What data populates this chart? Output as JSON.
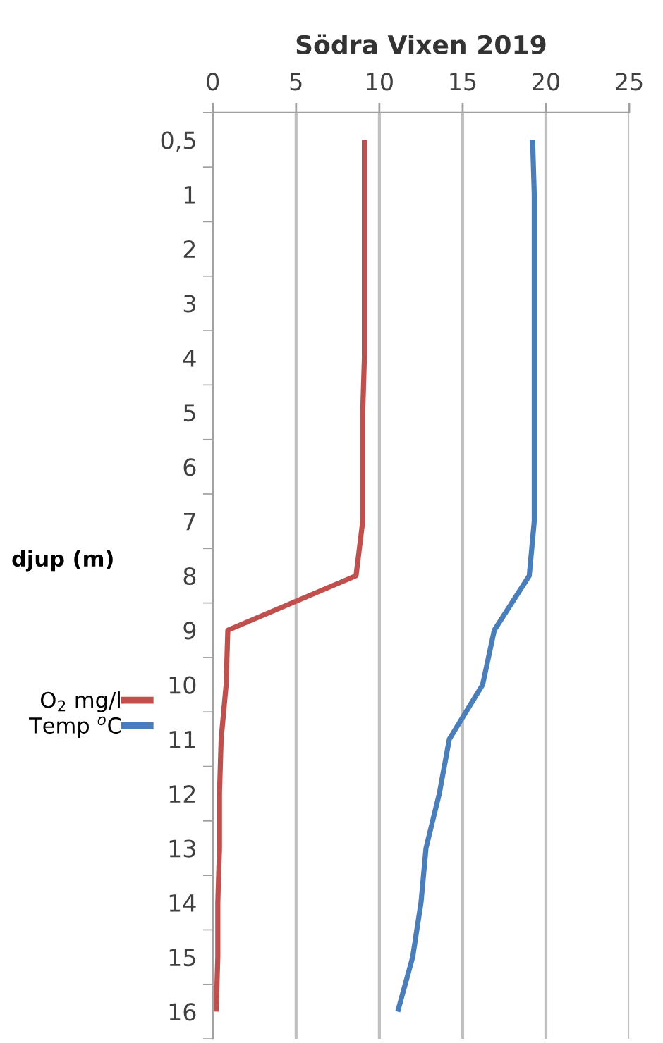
{
  "chart_data": {
    "type": "line",
    "title": "Södra Vixen 2019",
    "ylabel": "djup (m)",
    "categories": [
      "0,5",
      "1",
      "2",
      "3",
      "4",
      "5",
      "6",
      "7",
      "8",
      "9",
      "10",
      "11",
      "12",
      "13",
      "14",
      "15",
      "16"
    ],
    "series": [
      {
        "name": "O$_{2}$ mg/l",
        "color": "#c0504d",
        "values": [
          9.1,
          9.1,
          9.1,
          9.1,
          9.1,
          9.0,
          9.0,
          9.0,
          8.6,
          0.9,
          0.8,
          0.5,
          0.4,
          0.4,
          0.3,
          0.3,
          0.2
        ]
      },
      {
        "name": "Temp $^{o}$C",
        "color": "#4a7ebb",
        "values": [
          19.2,
          19.3,
          19.3,
          19.3,
          19.3,
          19.3,
          19.3,
          19.3,
          19.0,
          16.9,
          16.2,
          14.2,
          13.6,
          12.8,
          12.5,
          12.0,
          11.1
        ]
      }
    ],
    "orientation": "horizontal",
    "xlim": [
      0,
      25
    ],
    "xticks": [
      0,
      5,
      10,
      15,
      20,
      25
    ],
    "grid": "x",
    "legend": "left",
    "marker": "none",
    "line_style": "solid"
  }
}
